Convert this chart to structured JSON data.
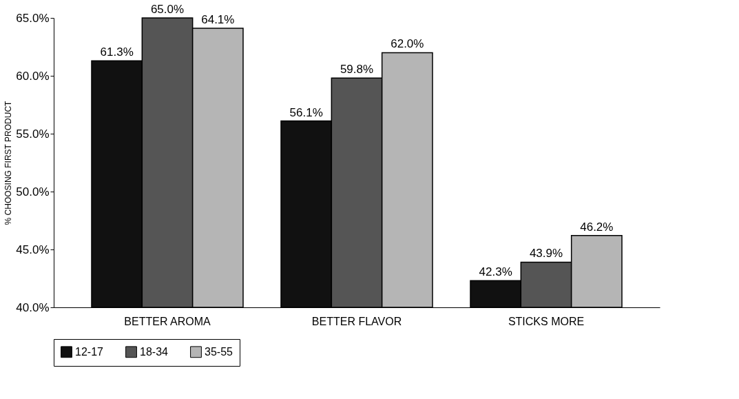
{
  "chart_data": {
    "type": "bar",
    "ylabel": "% CHOOSING FIRST PRODUCT",
    "categories": [
      "BETTER AROMA",
      "BETTER FLAVOR",
      "STICKS MORE"
    ],
    "series": [
      {
        "name": "12-17",
        "color": "#111111",
        "values": [
          61.3,
          56.1,
          42.3
        ],
        "value_labels": [
          "61.3%",
          "56.1%",
          "42.3%"
        ]
      },
      {
        "name": "18-34",
        "color": "#555555",
        "values": [
          65.0,
          59.8,
          43.9
        ],
        "value_labels": [
          "65.0%",
          "59.8%",
          "43.9%"
        ]
      },
      {
        "name": "35-55",
        "color": "#b5b5b5",
        "values": [
          64.1,
          62.0,
          46.2
        ],
        "value_labels": [
          "64.1%",
          "62.0%",
          "46.2%"
        ]
      }
    ],
    "ylim": [
      40,
      65
    ],
    "yticks": [
      {
        "value": 40,
        "label": "40.0%"
      },
      {
        "value": 45,
        "label": "45.0%"
      },
      {
        "value": 50,
        "label": "50.0%"
      },
      {
        "value": 55,
        "label": "55.0%"
      },
      {
        "value": 60,
        "label": "60.0%"
      },
      {
        "value": 65,
        "label": "65.0%"
      }
    ],
    "grid": false,
    "legend": "bottom"
  }
}
